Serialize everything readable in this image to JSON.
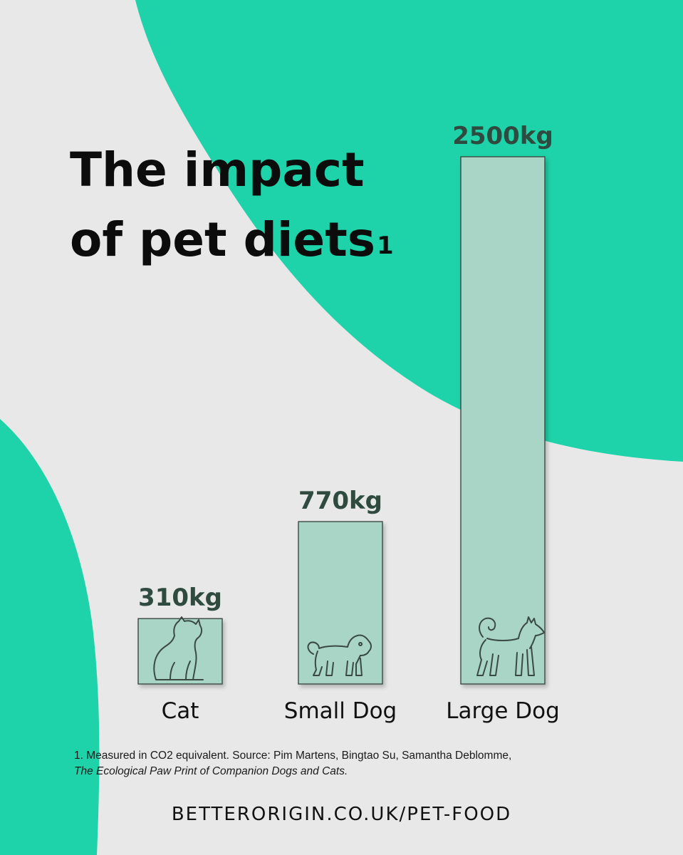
{
  "title": {
    "line1": "The impact",
    "line2": "of pet diets",
    "footnote_marker": "1"
  },
  "chart_data": {
    "type": "bar",
    "categories": [
      "Cat",
      "Small Dog",
      "Large Dog"
    ],
    "values": [
      310,
      770,
      2500
    ],
    "data_labels": [
      "310kg",
      "770kg",
      "2500kg"
    ],
    "icons": [
      "cat-icon",
      "small-dog-icon",
      "large-dog-icon"
    ],
    "unit": "kg",
    "ylim": [
      0,
      2500
    ],
    "title": "The impact of pet diets",
    "xlabel": "",
    "ylabel": ""
  },
  "footnote": {
    "line1": "1. Measured in CO2 equivalent. Source: Pim Martens, Bingtao Su, Samantha Deblomme,",
    "line2": "The Ecological Paw Print of Companion Dogs and Cats."
  },
  "url": "BETTERORIGIN.CO.UK/PET-FOOD",
  "colors": {
    "background": "#e8e8e8",
    "accent": "#1ed3a9",
    "bar_fill": "#a9d5c7",
    "bar_stroke": "#3a4a43",
    "value_text": "#2f4a3f"
  }
}
